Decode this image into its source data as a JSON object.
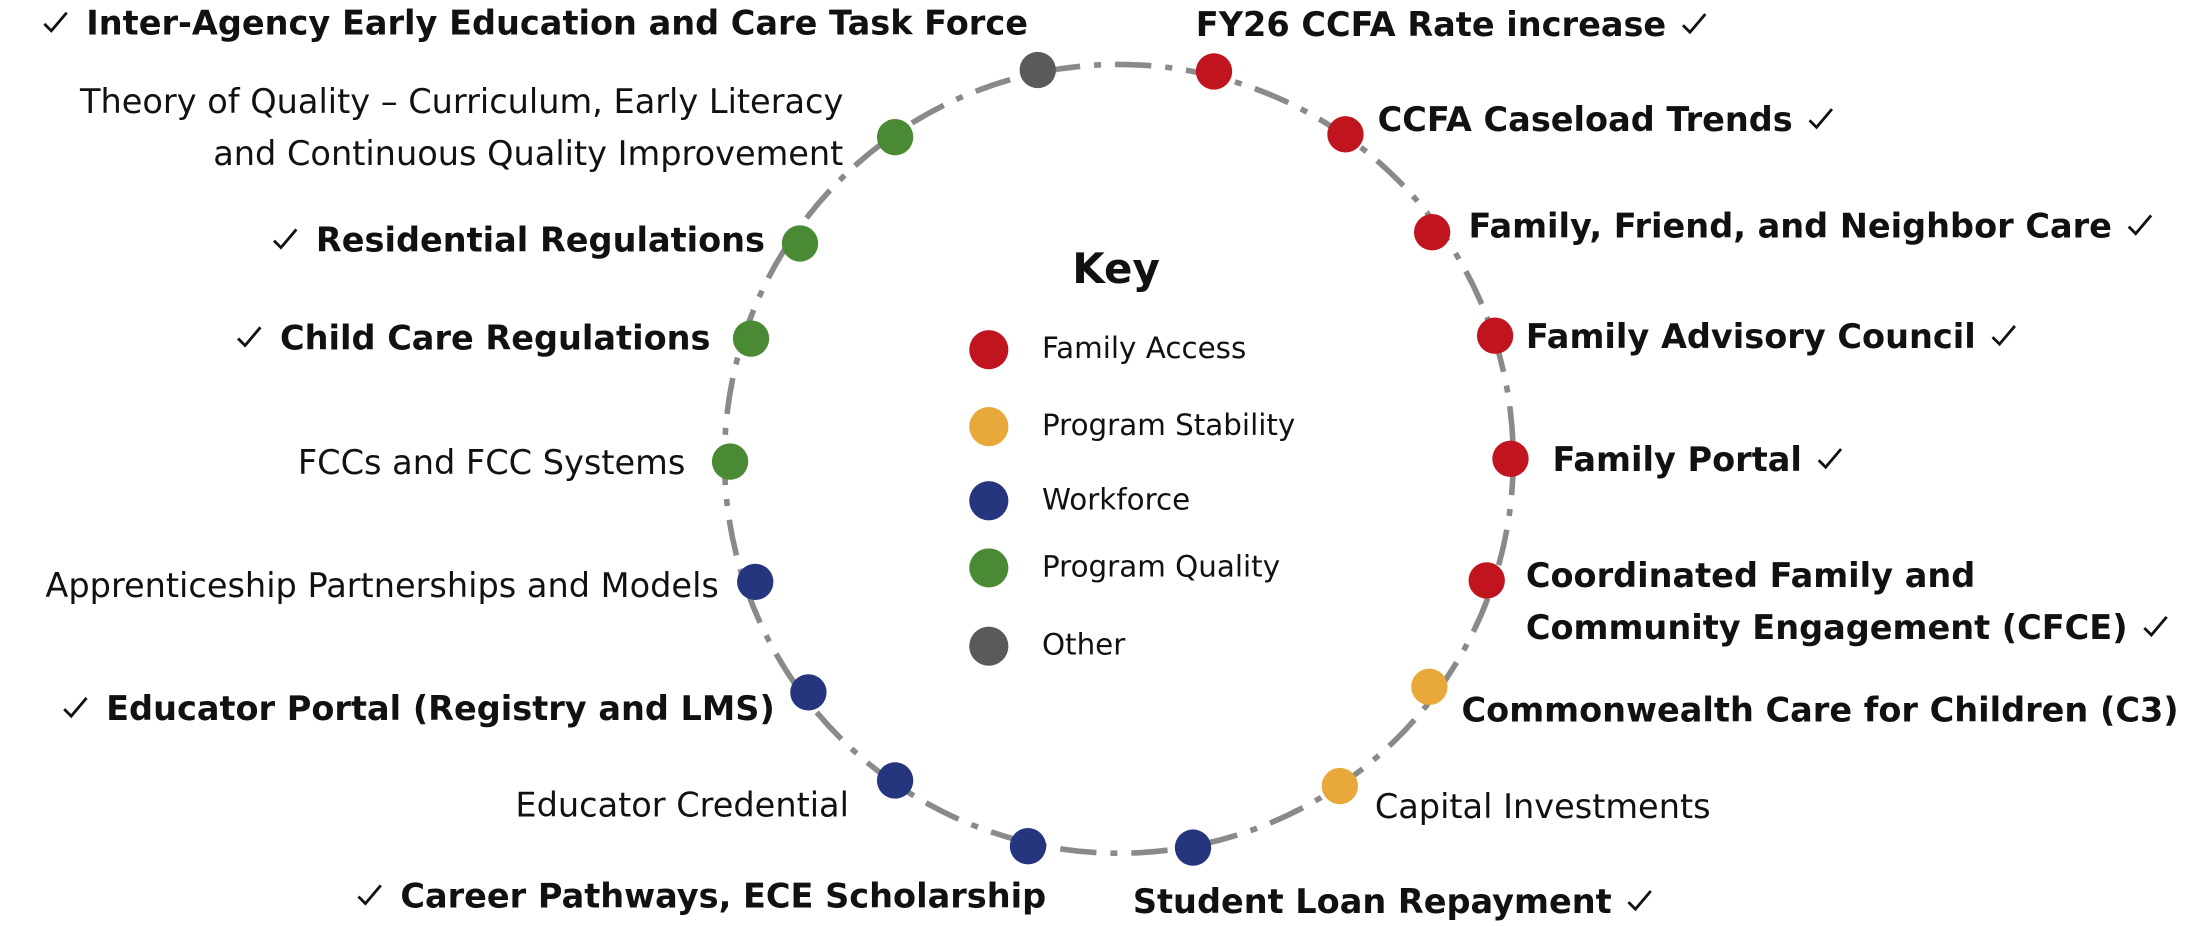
{
  "key": {
    "title": "Key",
    "items": [
      {
        "label": "Family Access",
        "color": "#c0141f"
      },
      {
        "label": "Program Stability",
        "color": "#e8a83a"
      },
      {
        "label": "Workforce",
        "color": "#26367e"
      },
      {
        "label": "Program Quality",
        "color": "#4a8a35"
      },
      {
        "label": "Other",
        "color": "#5a5a5a"
      }
    ]
  },
  "nodes": [
    {
      "lines": [
        "Inter-Agency Early Education and Care Task Force"
      ],
      "category": "Other",
      "done": true
    },
    {
      "lines": [
        "Theory of Quality – Curriculum, Early Literacy",
        "and Continuous Quality Improvement"
      ],
      "category": "Program Quality",
      "done": false
    },
    {
      "lines": [
        "Residential Regulations"
      ],
      "category": "Program Quality",
      "done": true
    },
    {
      "lines": [
        "Child Care Regulations"
      ],
      "category": "Program Quality",
      "done": true
    },
    {
      "lines": [
        "FCCs and FCC Systems"
      ],
      "category": "Program Quality",
      "done": false
    },
    {
      "lines": [
        "Apprenticeship Partnerships and Models"
      ],
      "category": "Workforce",
      "done": false
    },
    {
      "lines": [
        "Educator Portal (Registry and LMS)"
      ],
      "category": "Workforce",
      "done": true
    },
    {
      "lines": [
        "Educator Credential"
      ],
      "category": "Workforce",
      "done": false
    },
    {
      "lines": [
        "Career Pathways, ECE Scholarship"
      ],
      "category": "Workforce",
      "done": true
    },
    {
      "lines": [
        "Student Loan Repayment"
      ],
      "category": "Workforce",
      "done": true
    },
    {
      "lines": [
        "Capital Investments"
      ],
      "category": "Program Stability",
      "done": false
    },
    {
      "lines": [
        "Commonwealth Care for Children (C3)"
      ],
      "category": "Program Stability",
      "done": true
    },
    {
      "lines": [
        "Coordinated Family and",
        "Community Engagement (CFCE)"
      ],
      "category": "Family Access",
      "done": true
    },
    {
      "lines": [
        "Family Portal"
      ],
      "category": "Family Access",
      "done": true
    },
    {
      "lines": [
        "Family Advisory Council"
      ],
      "category": "Family Access",
      "done": true
    },
    {
      "lines": [
        "Family, Friend, and Neighbor Care"
      ],
      "category": "Family Access",
      "done": true
    },
    {
      "lines": [
        "CCFA Caseload Trends"
      ],
      "category": "Family Access",
      "done": true
    },
    {
      "lines": [
        "FY26 CCFA Rate increase"
      ],
      "category": "Family Access",
      "done": true
    }
  ]
}
